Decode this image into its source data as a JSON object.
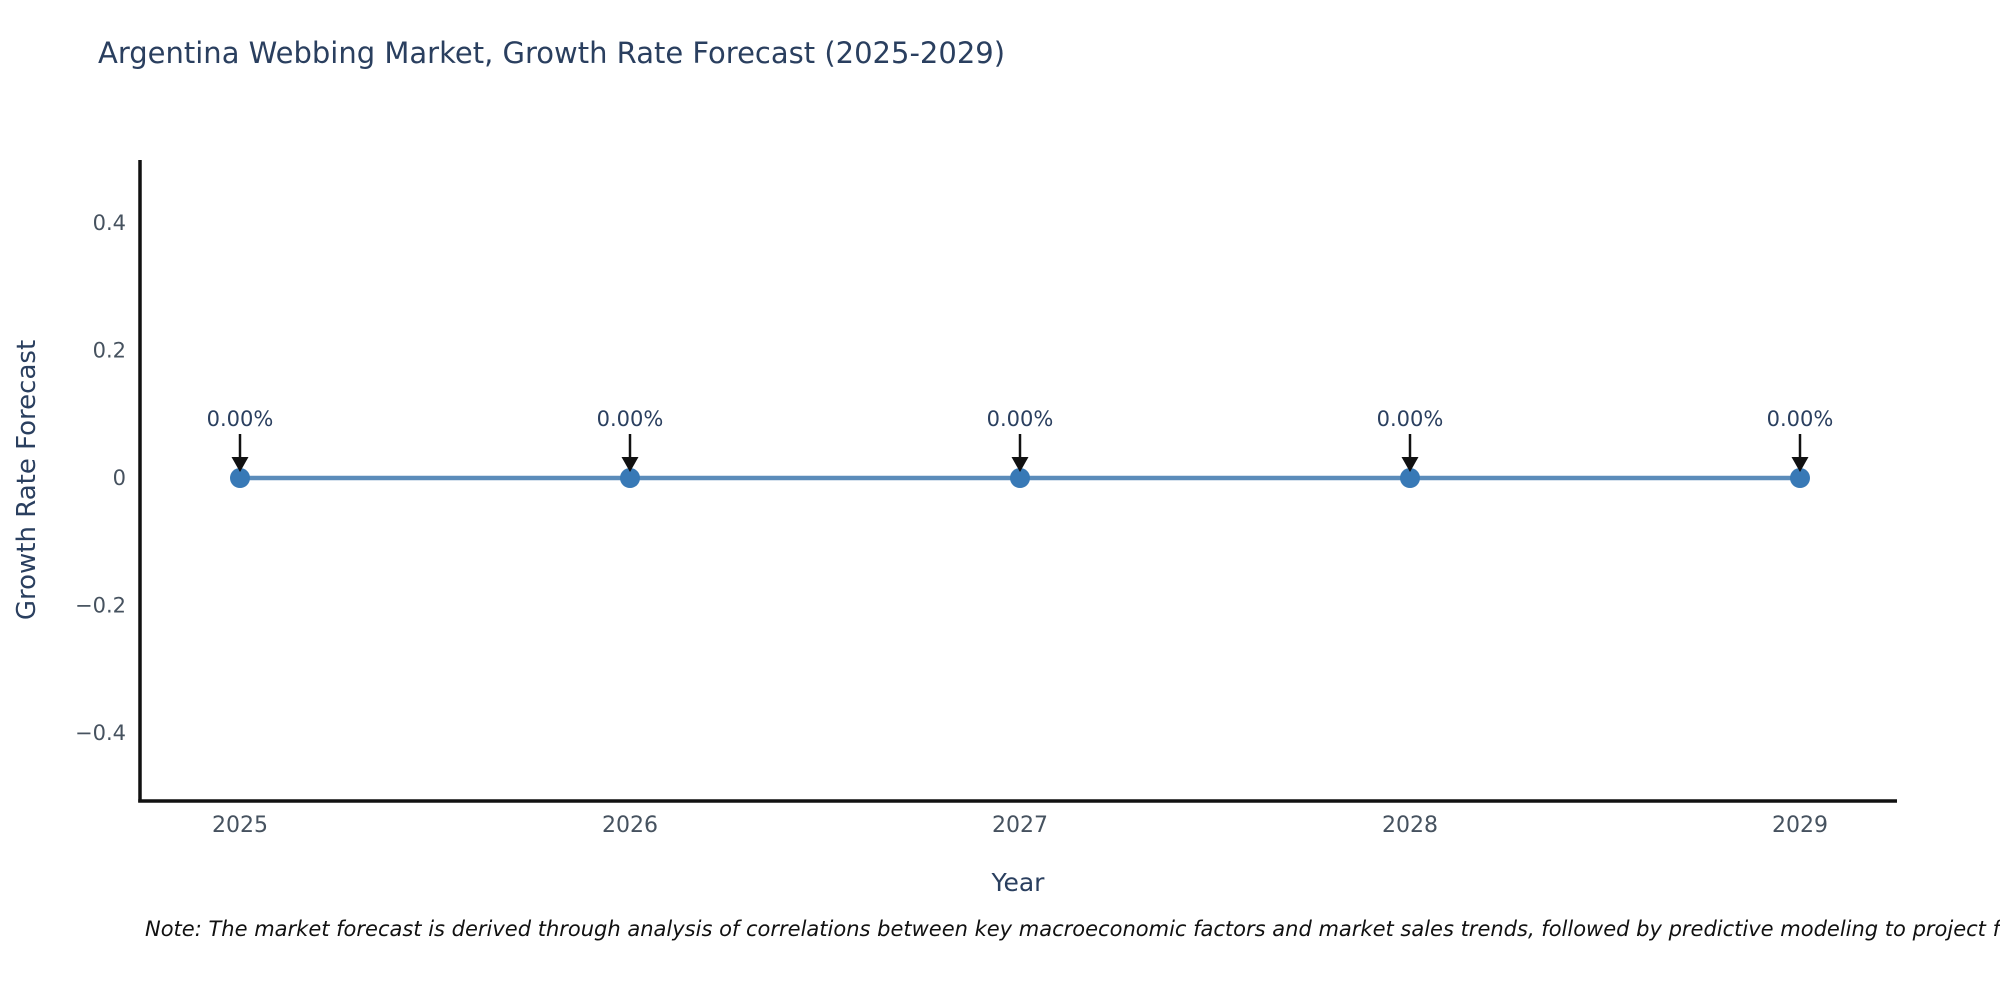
{
  "title": "Argentina Webbing Market, Growth Rate Forecast (2025-2029)",
  "note": "Note: The market forecast is derived through analysis of correlations between key macroeconomic factors and market sales trends, followed by predictive modeling to project future sales.",
  "colors": {
    "background": "#ffffff",
    "axis": "#111111",
    "line": "#5b8cba",
    "marker": "#3879b6",
    "arrow": "#111111",
    "title_text": "#2a3f5f",
    "tick_text": "#46525f",
    "annotation_text": "#2a3f5f",
    "note_text": "#111111"
  },
  "chart_data": {
    "type": "line",
    "title": "Argentina Webbing Market, Growth Rate Forecast (2025-2029)",
    "xlabel": "Year",
    "ylabel": "Growth Rate Forecast",
    "x": [
      2025,
      2026,
      2027,
      2028,
      2029
    ],
    "series": [
      {
        "name": "Growth Rate Forecast",
        "values": [
          0,
          0,
          0,
          0,
          0
        ]
      }
    ],
    "point_labels": [
      "0.00%",
      "0.00%",
      "0.00%",
      "0.00%",
      "0.00%"
    ],
    "xticks": [
      "2025",
      "2026",
      "2027",
      "2028",
      "2029"
    ],
    "yticks": [
      {
        "label": "0.4",
        "value": 0.4
      },
      {
        "label": "0.2",
        "value": 0.2
      },
      {
        "label": "0",
        "value": 0
      },
      {
        "label": "−0.2",
        "value": -0.2
      },
      {
        "label": "−0.4",
        "value": -0.4
      }
    ],
    "ylim": [
      -0.5,
      0.5
    ],
    "grid": false,
    "legend": false,
    "annotation_style": "value labels with downward arrows pointing at each data point"
  }
}
